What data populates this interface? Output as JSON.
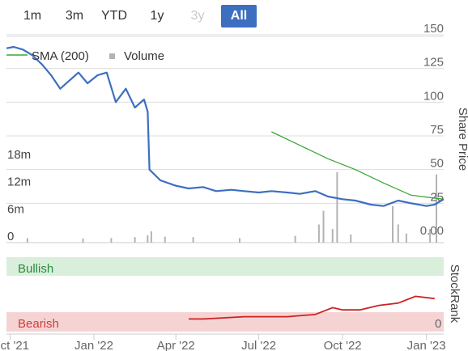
{
  "range_buttons": [
    {
      "label": "1m",
      "state": "normal"
    },
    {
      "label": "3m",
      "state": "normal"
    },
    {
      "label": "YTD",
      "state": "normal"
    },
    {
      "label": "1y",
      "state": "normal"
    },
    {
      "label": "3y",
      "state": "disabled"
    },
    {
      "label": "All",
      "state": "active"
    }
  ],
  "colors": {
    "price": "#3d6fc1",
    "sma": "#3aa63a",
    "volume": "#b3b3b3",
    "bullish_bg": "#d9efdc",
    "bullish_text": "#2b8a3e",
    "bearish_bg": "#f5d3d3",
    "bearish_text": "#d03b3b",
    "stockrank": "#cc2222",
    "grid": "#dddddd"
  },
  "chart_data": {
    "type": "line",
    "xlabel": "",
    "ylabel": "Share Price",
    "x_ticks": [
      "Oct '21",
      "Jan '22",
      "Apr '22",
      "Jul '22",
      "Oct '22",
      "Jan '23"
    ],
    "x_range": [
      "2021-09-27",
      "2023-01-20"
    ],
    "y_ticks": [
      "0.00",
      "25",
      "50",
      "75",
      "100",
      "125",
      "150"
    ],
    "ylim": [
      0,
      150
    ],
    "volume_ticks": [
      "0",
      "6m",
      "12m",
      "18m"
    ],
    "volume_lim": [
      0,
      24000000
    ],
    "grid": true,
    "legend_placement": "top-left",
    "series": [
      {
        "name": "SMA (200)",
        "x": [
          "2022-07-15",
          "2022-08-15",
          "2022-09-15",
          "2022-10-15",
          "2022-11-15",
          "2022-12-15",
          "2023-01-20"
        ],
        "values": [
          78,
          68,
          58,
          50,
          40,
          31,
          28
        ]
      },
      {
        "name": "Share Price",
        "x": [
          "2021-09-27",
          "2021-10-05",
          "2021-10-15",
          "2021-10-25",
          "2021-11-05",
          "2021-11-15",
          "2021-11-25",
          "2021-12-05",
          "2021-12-15",
          "2021-12-25",
          "2022-01-05",
          "2022-01-15",
          "2022-01-25",
          "2022-02-05",
          "2022-02-15",
          "2022-02-25",
          "2022-03-01",
          "2022-03-03",
          "2022-03-15",
          "2022-04-01",
          "2022-04-15",
          "2022-05-01",
          "2022-05-15",
          "2022-06-01",
          "2022-06-15",
          "2022-07-01",
          "2022-07-15",
          "2022-08-01",
          "2022-08-15",
          "2022-09-01",
          "2022-09-15",
          "2022-10-01",
          "2022-10-15",
          "2022-11-01",
          "2022-11-15",
          "2022-12-01",
          "2022-12-15",
          "2023-01-01",
          "2023-01-10",
          "2023-01-20"
        ],
        "values": [
          140,
          141,
          139,
          135,
          128,
          120,
          110,
          116,
          122,
          114,
          120,
          122,
          100,
          110,
          96,
          102,
          93,
          50,
          42,
          38,
          36,
          37,
          34,
          35,
          34,
          33,
          34,
          33,
          32,
          34,
          30,
          28,
          27,
          24,
          23,
          27,
          25,
          23,
          24,
          28
        ]
      }
    ],
    "volume_bars": {
      "x": [
        "2021-10-20",
        "2021-12-20",
        "2022-01-20",
        "2022-02-15",
        "2022-03-01",
        "2022-03-05",
        "2022-03-20",
        "2022-04-20",
        "2022-06-10",
        "2022-08-10",
        "2022-09-05",
        "2022-09-10",
        "2022-09-20",
        "2022-09-25",
        "2022-10-10",
        "2022-11-25",
        "2022-12-01",
        "2022-12-10",
        "2023-01-05",
        "2023-01-12"
      ],
      "values": [
        1000000,
        900000,
        1000000,
        1200000,
        1600000,
        2500000,
        1300000,
        1200000,
        1000000,
        1500000,
        4000000,
        7000000,
        3000000,
        15500000,
        1800000,
        8000000,
        4000000,
        2000000,
        3000000,
        15000000
      ]
    },
    "stockrank": {
      "title": "StockRank",
      "bullish_label": "Bullish",
      "bearish_label": "Bearish",
      "tick": "0",
      "ylim": [
        0,
        100
      ],
      "x": [
        "2022-04-15",
        "2022-05-01",
        "2022-06-15",
        "2022-08-01",
        "2022-09-01",
        "2022-09-20",
        "2022-10-01",
        "2022-10-20",
        "2022-11-10",
        "2022-12-01",
        "2022-12-20",
        "2023-01-10"
      ],
      "values": [
        2,
        2,
        3,
        3,
        4,
        7,
        6,
        6,
        8,
        9,
        12,
        11
      ]
    }
  }
}
